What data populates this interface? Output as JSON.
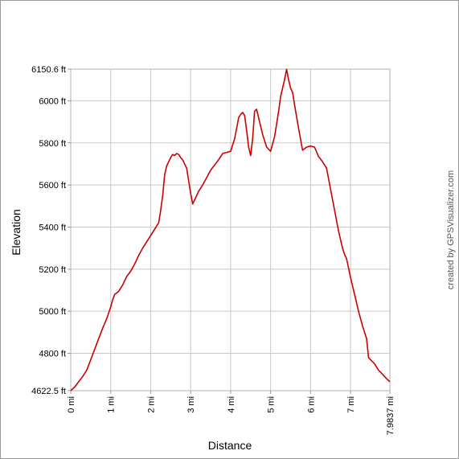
{
  "chart_data": {
    "type": "line",
    "title": "",
    "xlabel": "Distance",
    "ylabel": "Elevation",
    "credit": "created by GPSVisualizer.com",
    "xlim": [
      0,
      7.9837
    ],
    "ylim": [
      4622.5,
      6150.6
    ],
    "grid": true,
    "line_color": "#cc0000",
    "x_ticks": [
      {
        "value": 0,
        "label": "0 mi"
      },
      {
        "value": 1,
        "label": "1 mi"
      },
      {
        "value": 2,
        "label": "2 mi"
      },
      {
        "value": 3,
        "label": "3 mi"
      },
      {
        "value": 4,
        "label": "4 mi"
      },
      {
        "value": 5,
        "label": "5 mi"
      },
      {
        "value": 6,
        "label": "6 mi"
      },
      {
        "value": 7,
        "label": "7 mi"
      },
      {
        "value": 7.9837,
        "label": "7.9837 mi"
      }
    ],
    "y_ticks": [
      {
        "value": 4622.5,
        "label": "4622.5 ft"
      },
      {
        "value": 4800,
        "label": "4800 ft"
      },
      {
        "value": 5000,
        "label": "5000 ft"
      },
      {
        "value": 5200,
        "label": "5200 ft"
      },
      {
        "value": 5400,
        "label": "5400 ft"
      },
      {
        "value": 5600,
        "label": "5600 ft"
      },
      {
        "value": 5800,
        "label": "5800 ft"
      },
      {
        "value": 6000,
        "label": "6000 ft"
      },
      {
        "value": 6150.6,
        "label": "6150.6 ft"
      }
    ],
    "series": [
      {
        "x": [
          0,
          0.1,
          0.2,
          0.3,
          0.4,
          0.5,
          0.6,
          0.7,
          0.8,
          0.9,
          1.0,
          1.05,
          1.1,
          1.2,
          1.3,
          1.4,
          1.5,
          1.6,
          1.7,
          1.8,
          1.9,
          2.0,
          2.1,
          2.2,
          2.25,
          2.3,
          2.35,
          2.4,
          2.45,
          2.5,
          2.55,
          2.6,
          2.65,
          2.7,
          2.75,
          2.8,
          2.85,
          2.9,
          3.0,
          3.05,
          3.1,
          3.2,
          3.3,
          3.4,
          3.5,
          3.6,
          3.7,
          3.8,
          3.9,
          4.0,
          4.05,
          4.1,
          4.15,
          4.2,
          4.25,
          4.3,
          4.35,
          4.4,
          4.45,
          4.5,
          4.55,
          4.6,
          4.65,
          4.7,
          4.8,
          4.9,
          5.0,
          5.1,
          5.2,
          5.25,
          5.3,
          5.35,
          5.4,
          5.45,
          5.5,
          5.55,
          5.6,
          5.7,
          5.8,
          5.9,
          6.0,
          6.1,
          6.2,
          6.3,
          6.4,
          6.5,
          6.6,
          6.7,
          6.8,
          6.85,
          6.9,
          7.0,
          7.05,
          7.1,
          7.2,
          7.3,
          7.4,
          7.45,
          7.5,
          7.55,
          7.6,
          7.7,
          7.8,
          7.9,
          7.9837
        ],
        "y": [
          4622.5,
          4640,
          4665,
          4690,
          4720,
          4770,
          4820,
          4870,
          4920,
          4965,
          5020,
          5055,
          5080,
          5095,
          5125,
          5165,
          5190,
          5225,
          5265,
          5300,
          5330,
          5360,
          5390,
          5420,
          5480,
          5550,
          5650,
          5690,
          5710,
          5730,
          5745,
          5740,
          5750,
          5745,
          5730,
          5720,
          5700,
          5680,
          5560,
          5510,
          5530,
          5570,
          5600,
          5635,
          5670,
          5695,
          5720,
          5750,
          5755,
          5760,
          5790,
          5820,
          5870,
          5920,
          5935,
          5945,
          5930,
          5860,
          5780,
          5740,
          5820,
          5950,
          5960,
          5920,
          5840,
          5780,
          5760,
          5830,
          5950,
          6020,
          6060,
          6100,
          6150,
          6100,
          6060,
          6040,
          5980,
          5870,
          5765,
          5780,
          5785,
          5780,
          5735,
          5710,
          5680,
          5580,
          5480,
          5380,
          5300,
          5270,
          5250,
          5160,
          5120,
          5080,
          5000,
          4930,
          4870,
          4780,
          4770,
          4760,
          4750,
          4720,
          4700,
          4680,
          4665
        ]
      }
    ]
  }
}
